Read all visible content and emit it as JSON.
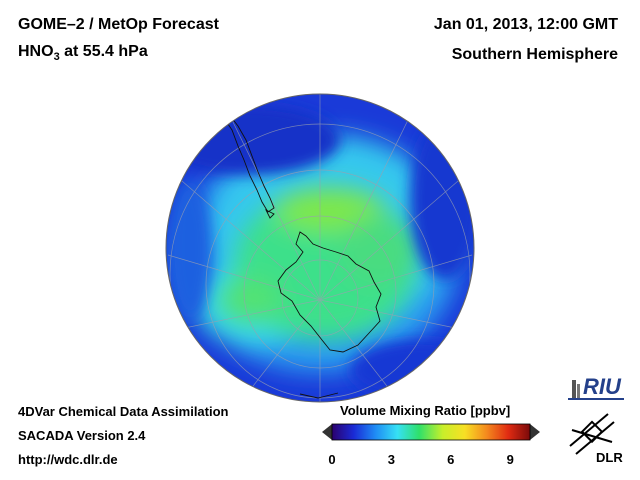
{
  "header": {
    "title_main": "GOME–2 / MetOp Forecast",
    "species": "HNO",
    "species_sub": "3",
    "level": " at 55.4 hPa",
    "datetime": "Jan 01, 2013, 12:00 GMT",
    "region": "Southern Hemisphere"
  },
  "footer": {
    "line1": "4DVar Chemical Data Assimilation",
    "line2": "SACADA Version 2.4",
    "line3": "http://wdc.dlr.de"
  },
  "colorbar": {
    "title": "Volume Mixing Ratio [ppbv]",
    "ticks": [
      "0",
      "3",
      "6",
      "9"
    ],
    "min": 0,
    "max": 10,
    "tick_values": [
      0,
      3,
      6,
      9
    ],
    "colors": [
      "#2b006e",
      "#1a2bd6",
      "#1f8cf5",
      "#36e0f5",
      "#2fe06a",
      "#c8ef2a",
      "#f7e024",
      "#f48a1e",
      "#e02b12",
      "#7a0a0a"
    ],
    "underflow_color": "#333333",
    "overflow_color": "#333333"
  },
  "logos": {
    "riu": "RIU",
    "dlr": "DLR"
  }
}
